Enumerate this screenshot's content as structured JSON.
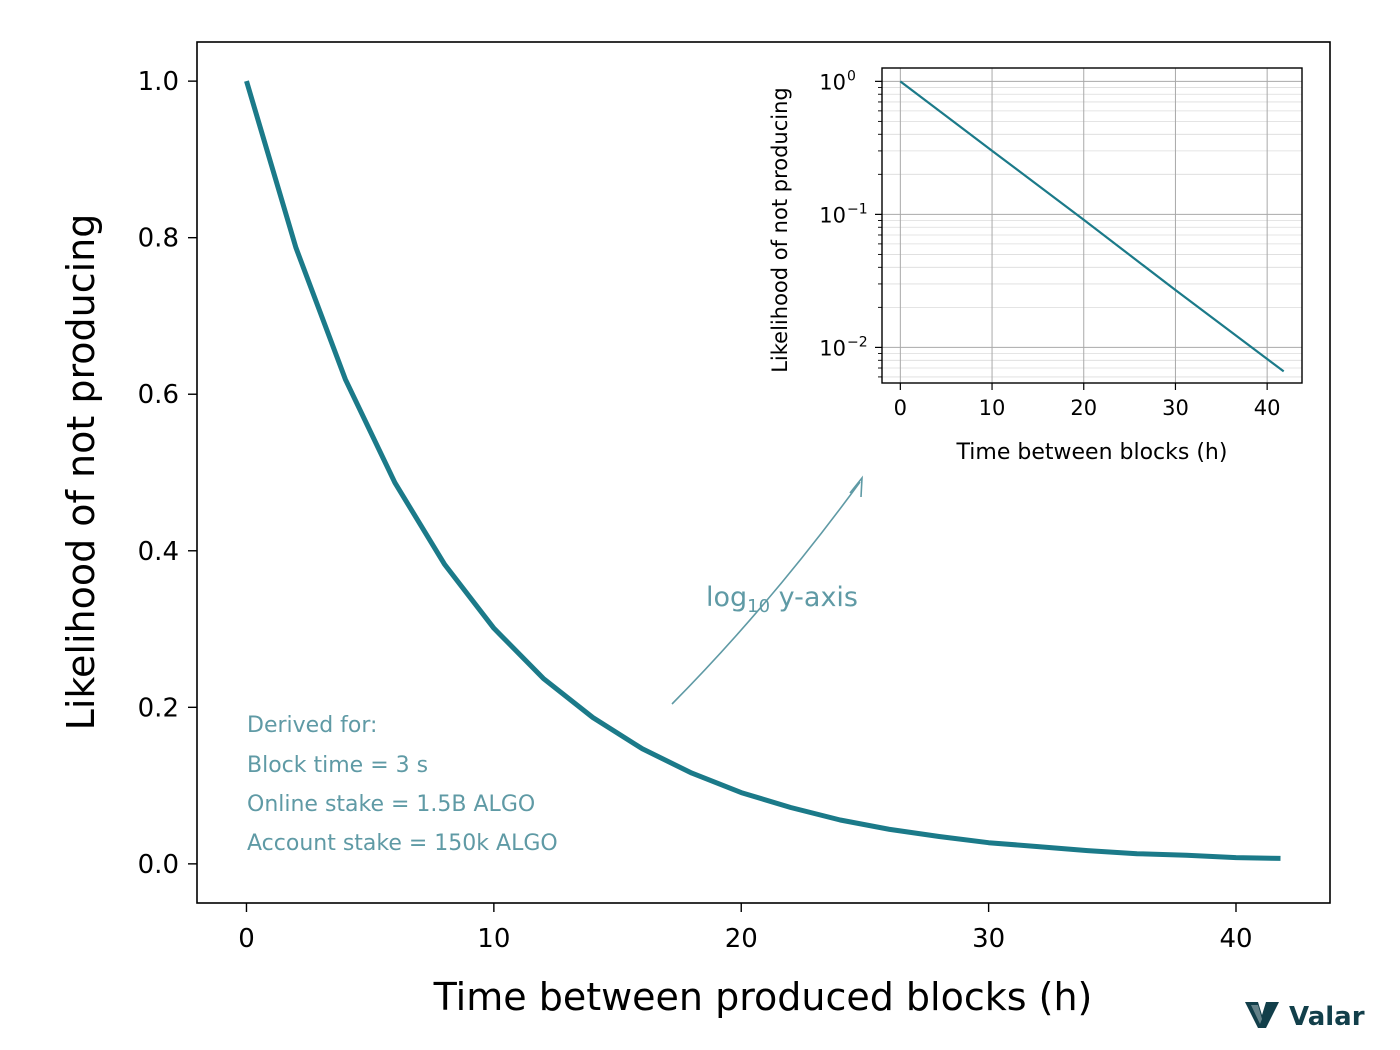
{
  "chart_data": [
    {
      "type": "line",
      "title": "",
      "xlabel": "Time between produced blocks (h)",
      "ylabel": "Likelihood of not producing",
      "xlim": [
        -2,
        43.8
      ],
      "ylim": [
        -0.05,
        1.05
      ],
      "x_ticks": [
        0,
        10,
        20,
        30,
        40
      ],
      "y_ticks": [
        0.0,
        0.2,
        0.4,
        0.6,
        0.8,
        1.0
      ],
      "x_tick_labels": [
        "0",
        "10",
        "20",
        "30",
        "40"
      ],
      "y_tick_labels": [
        "0.0",
        "0.2",
        "0.4",
        "0.6",
        "0.8",
        "1.0"
      ],
      "series": [
        {
          "color": "#1b7a89",
          "x": [
            0,
            2,
            4,
            6,
            8,
            10,
            12,
            14,
            16,
            18,
            20,
            22,
            24,
            26,
            28,
            30,
            32,
            34,
            36,
            38,
            40,
            41.8
          ],
          "y": [
            1.0,
            0.787,
            0.619,
            0.487,
            0.383,
            0.301,
            0.237,
            0.187,
            0.147,
            0.116,
            0.091,
            0.072,
            0.056,
            0.044,
            0.035,
            0.027,
            0.022,
            0.017,
            0.013,
            0.011,
            0.008,
            0.007
          ]
        }
      ],
      "annotations": {
        "derived_lines": [
          "Derived for:",
          "Block time = 3 s",
          "Online stake = 1.5B ALGO",
          "Account stake = 150k ALGO"
        ],
        "arrow_label_base": "log",
        "arrow_label_sub": "10",
        "arrow_label_rest": " y-axis",
        "annotation_color": "#5f9aa5"
      },
      "grid": false
    },
    {
      "type": "line",
      "title": "",
      "xlabel": "Time between blocks (h)",
      "ylabel": "Likelihood of not producing",
      "yscale": "log",
      "xlim": [
        -2,
        43.8
      ],
      "ylim": [
        0.0054,
        1.26
      ],
      "x_ticks": [
        0,
        10,
        20,
        30,
        40
      ],
      "x_tick_labels": [
        "0",
        "10",
        "20",
        "30",
        "40"
      ],
      "y_tick_base": "10",
      "y_tick_exponents": [
        "0",
        "−1",
        "−2"
      ],
      "series": [
        {
          "color": "#1b7a89",
          "x": [
            0,
            10,
            20,
            30,
            41.8
          ],
          "y": [
            1.0,
            0.301,
            0.091,
            0.027,
            0.0066
          ]
        }
      ],
      "grid": true
    }
  ],
  "brand": {
    "name": "Valar",
    "color": "#123f4a"
  }
}
